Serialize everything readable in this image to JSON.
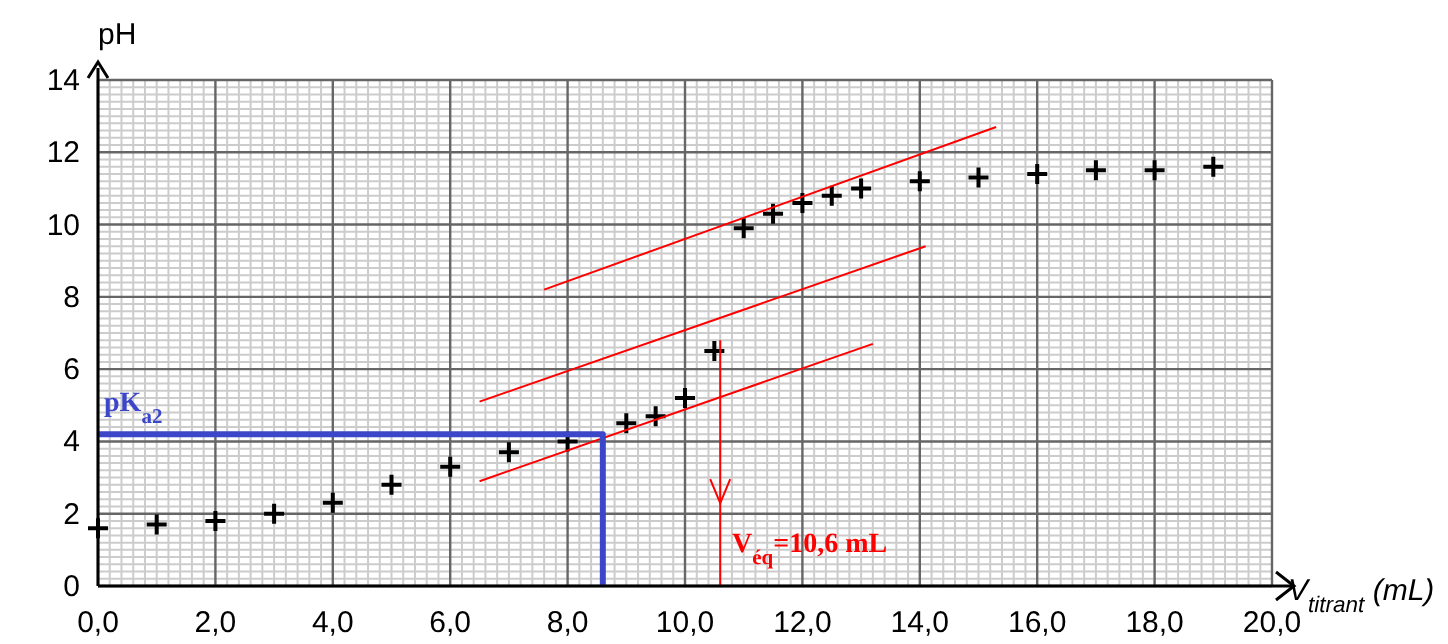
{
  "chart_data": {
    "type": "scatter",
    "xlabel": "V$_{titrant}$ (mL)",
    "ylabel": "pH",
    "xlim": [
      0,
      20
    ],
    "ylim": [
      0,
      14
    ],
    "xticks": [
      {
        "value": 0,
        "label": "0,0"
      },
      {
        "value": 2,
        "label": "2,0"
      },
      {
        "value": 4,
        "label": "4,0"
      },
      {
        "value": 6,
        "label": "6,0"
      },
      {
        "value": 8,
        "label": "8,0"
      },
      {
        "value": 10,
        "label": "10,0"
      },
      {
        "value": 12,
        "label": "12,0"
      },
      {
        "value": 14,
        "label": "14,0"
      },
      {
        "value": 16,
        "label": "16,0"
      },
      {
        "value": 18,
        "label": "18,0"
      },
      {
        "value": 20,
        "label": "20,0"
      }
    ],
    "yticks": [
      0,
      2,
      4,
      6,
      8,
      10,
      12,
      14
    ],
    "grid": true,
    "series": [
      {
        "color": "#000000",
        "marker": "cross",
        "x": [
          0,
          1,
          2,
          3,
          4,
          5,
          6,
          7,
          8,
          9,
          9.5,
          10,
          10.5,
          11,
          11.5,
          12,
          12.5,
          13,
          14,
          15,
          16,
          17,
          18,
          19
        ],
        "values": [
          1.6,
          1.7,
          1.8,
          2.0,
          2.3,
          2.8,
          3.3,
          3.7,
          4.0,
          4.5,
          4.7,
          5.2,
          6.5,
          9.9,
          10.3,
          10.6,
          10.8,
          11.0,
          11.2,
          11.3,
          11.4,
          11.5,
          11.5,
          11.6
        ]
      },
      {
        "type": "line",
        "marker": "none",
        "color": "#ff0000",
        "x": [
          7.6,
          15.3
        ],
        "values": [
          8.2,
          12.7
        ]
      },
      {
        "type": "line",
        "marker": "none",
        "color": "#ff0000",
        "x": [
          6.5,
          14.1
        ],
        "values": [
          5.1,
          9.4
        ]
      },
      {
        "type": "line",
        "marker": "none",
        "color": "#ff0000",
        "x": [
          6.5,
          13.2
        ],
        "values": [
          2.9,
          6.7
        ]
      },
      {
        "type": "line",
        "marker": "none",
        "color": "#ff0000",
        "x": [
          10.6,
          10.6
        ],
        "values": [
          6.8,
          0
        ]
      },
      {
        "type": "line",
        "marker": "none",
        "color": "#3c46c8",
        "x": [
          0,
          8.6,
          8.6
        ],
        "values": [
          4.2,
          4.2,
          0
        ]
      }
    ],
    "annotations": [
      "pK$_{a2}$",
      "V$_{éq}$=10,6 mL"
    ]
  }
}
